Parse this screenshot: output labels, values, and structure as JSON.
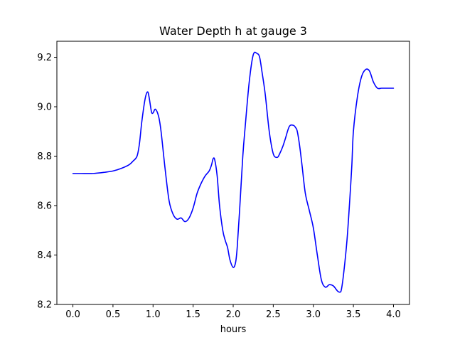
{
  "chart_data": {
    "type": "line",
    "title": "Water Depth h at gauge 3",
    "xlabel": "hours",
    "ylabel": "",
    "xlim": [
      -0.2,
      4.2
    ],
    "ylim": [
      8.2,
      9.265
    ],
    "xticks": [
      0.0,
      0.5,
      1.0,
      1.5,
      2.0,
      2.5,
      3.0,
      3.5,
      4.0
    ],
    "xtick_labels": [
      "0.0",
      "0.5",
      "1.0",
      "1.5",
      "2.0",
      "2.5",
      "3.0",
      "3.5",
      "4.0"
    ],
    "yticks": [
      8.2,
      8.4,
      8.6,
      8.8,
      9.0,
      9.2
    ],
    "ytick_labels": [
      "8.2",
      "8.4",
      "8.6",
      "8.8",
      "9.0",
      "9.2"
    ],
    "grid": false,
    "series": [
      {
        "color": "#0000ff",
        "x": [
          0.0,
          0.1,
          0.25,
          0.4,
          0.5,
          0.6,
          0.7,
          0.75,
          0.8,
          0.83,
          0.86,
          0.9,
          0.93,
          0.95,
          0.98,
          1.0,
          1.03,
          1.07,
          1.1,
          1.15,
          1.2,
          1.25,
          1.3,
          1.35,
          1.4,
          1.45,
          1.5,
          1.55,
          1.6,
          1.65,
          1.7,
          1.73,
          1.75,
          1.77,
          1.8,
          1.83,
          1.87,
          1.9,
          1.93,
          1.96,
          2.0,
          2.03,
          2.05,
          2.08,
          2.12,
          2.15,
          2.2,
          2.25,
          2.3,
          2.33,
          2.36,
          2.4,
          2.45,
          2.5,
          2.55,
          2.58,
          2.62,
          2.65,
          2.7,
          2.75,
          2.78,
          2.8,
          2.83,
          2.86,
          2.9,
          2.95,
          3.0,
          3.05,
          3.1,
          3.15,
          3.2,
          3.25,
          3.3,
          3.33,
          3.35,
          3.38,
          3.42,
          3.45,
          3.48,
          3.5,
          3.55,
          3.6,
          3.65,
          3.7,
          3.75,
          3.8,
          3.85,
          3.9,
          3.95,
          4.0
        ],
        "values": [
          8.73,
          8.73,
          8.73,
          8.735,
          8.74,
          8.75,
          8.765,
          8.78,
          8.8,
          8.85,
          8.94,
          9.03,
          9.06,
          9.04,
          8.98,
          8.975,
          8.99,
          8.96,
          8.9,
          8.75,
          8.62,
          8.565,
          8.545,
          8.55,
          8.535,
          8.55,
          8.59,
          8.65,
          8.69,
          8.72,
          8.74,
          8.765,
          8.79,
          8.785,
          8.72,
          8.6,
          8.5,
          8.46,
          8.43,
          8.38,
          8.35,
          8.37,
          8.43,
          8.58,
          8.8,
          8.92,
          9.1,
          9.21,
          9.215,
          9.2,
          9.14,
          9.05,
          8.9,
          8.81,
          8.795,
          8.81,
          8.84,
          8.87,
          8.92,
          8.925,
          8.915,
          8.9,
          8.84,
          8.76,
          8.65,
          8.58,
          8.51,
          8.4,
          8.3,
          8.27,
          8.28,
          8.275,
          8.255,
          8.25,
          8.26,
          8.33,
          8.46,
          8.6,
          8.76,
          8.9,
          9.04,
          9.12,
          9.15,
          9.145,
          9.1,
          9.075,
          9.075,
          9.075,
          9.075,
          9.075
        ]
      }
    ]
  }
}
